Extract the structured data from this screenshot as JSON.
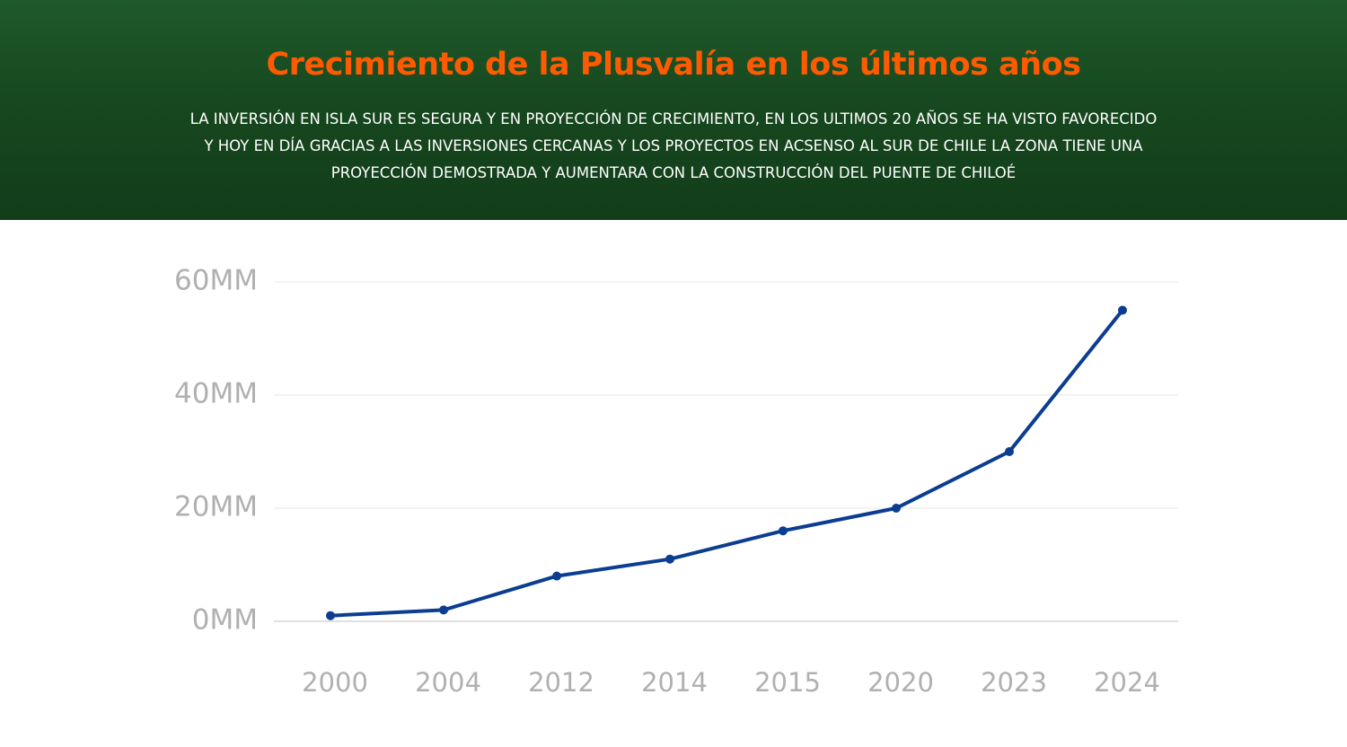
{
  "chart_data": {
    "type": "line",
    "title": "Crecimiento de la Plusvalía en los últimos años",
    "subtitle": [
      "LA INVERSIÓN EN ISLA SUR ES SEGURA Y EN PROYECCIÓN DE CRECIMIENTO, EN LOS ULTIMOS 20 AÑOS SE HA VISTO FAVORECIDO",
      "Y HOY EN DÍA GRACIAS A LAS INVERSIONES CERCANAS Y LOS PROYECTOS EN ACSENSO AL SUR DE CHILE LA ZONA TIENE UNA",
      "PROYECCIÓN DEMOSTRADA Y AUMENTARA CON LA CONSTRUCCIÓN DEL PUENTE DE CHILOÉ"
    ],
    "categories": [
      "2000",
      "2004",
      "2012",
      "2014",
      "2015",
      "2020",
      "2023",
      "2024"
    ],
    "values": [
      1,
      2,
      8,
      11,
      16,
      20,
      30,
      55
    ],
    "color": "#0b3d91",
    "ylim": [
      0,
      60
    ],
    "yticks": [
      {
        "value": 0,
        "label": "0MM"
      },
      {
        "value": 20,
        "label": "20MM"
      },
      {
        "value": 40,
        "label": "40MM"
      },
      {
        "value": 60,
        "label": "60MM"
      }
    ],
    "grid": true
  }
}
